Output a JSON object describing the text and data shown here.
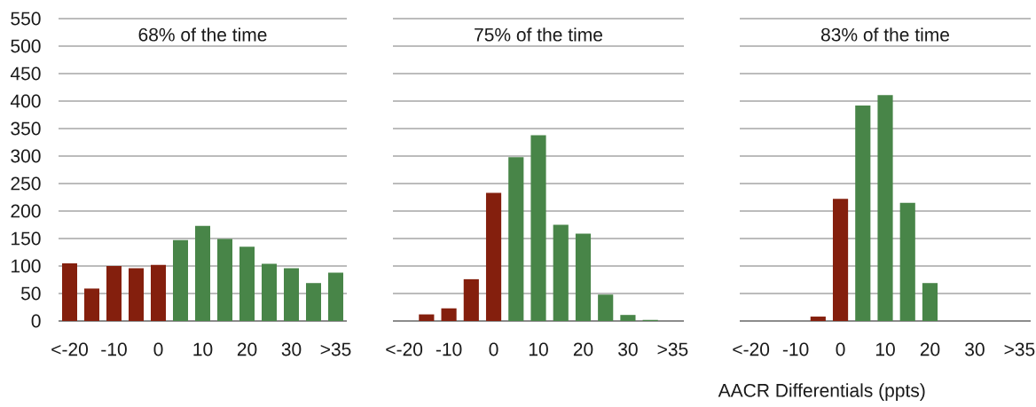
{
  "chart_data": [
    {
      "type": "bar",
      "title": "68% of the time",
      "categories": [
        "<-20",
        null,
        "-10",
        null,
        "0",
        null,
        "10",
        null,
        "20",
        null,
        "30",
        null,
        ">35"
      ],
      "values": [
        105,
        59,
        100,
        96,
        102,
        147,
        173,
        149,
        135,
        104,
        96,
        69,
        88
      ],
      "colors": [
        "#841f0d",
        "#841f0d",
        "#841f0d",
        "#841f0d",
        "#841f0d",
        "#488548",
        "#488548",
        "#488548",
        "#488548",
        "#488548",
        "#488548",
        "#488548",
        "#488548"
      ],
      "ylim": [
        0,
        550
      ],
      "yticks": [
        0,
        50,
        100,
        150,
        200,
        250,
        300,
        350,
        400,
        450,
        500,
        550
      ],
      "grid": "y"
    },
    {
      "type": "bar",
      "title": "75% of the time",
      "categories": [
        "<-20",
        null,
        "-10",
        null,
        "0",
        null,
        "10",
        null,
        "20",
        null,
        "30",
        null,
        ">35"
      ],
      "values": [
        0,
        12,
        23,
        76,
        233,
        298,
        338,
        175,
        159,
        48,
        11,
        2,
        0
      ],
      "colors": [
        "#841f0d",
        "#841f0d",
        "#841f0d",
        "#841f0d",
        "#841f0d",
        "#488548",
        "#488548",
        "#488548",
        "#488548",
        "#488548",
        "#488548",
        "#488548",
        "#488548"
      ],
      "ylim": [
        0,
        550
      ],
      "yticks": [
        0,
        50,
        100,
        150,
        200,
        250,
        300,
        350,
        400,
        450,
        500,
        550
      ],
      "grid": "y",
      "tick_labels": "x"
    },
    {
      "type": "bar",
      "title": "83% of the time",
      "xlabel": "AACR Differentials (ppts)",
      "categories": [
        "<-20",
        null,
        "-10",
        null,
        "0",
        null,
        "10",
        null,
        "20",
        null,
        "30",
        null,
        ">35"
      ],
      "values": [
        0,
        0,
        0,
        8,
        222,
        392,
        411,
        215,
        69,
        0,
        0,
        0,
        0
      ],
      "colors": [
        "#841f0d",
        "#841f0d",
        "#841f0d",
        "#841f0d",
        "#841f0d",
        "#488548",
        "#488548",
        "#488548",
        "#488548",
        "#488548",
        "#488548",
        "#488548",
        "#488548"
      ],
      "ylim": [
        0,
        550
      ],
      "yticks": [
        0,
        50,
        100,
        150,
        200,
        250,
        300,
        350,
        400,
        450,
        500,
        550
      ],
      "grid": "y",
      "tick_labels": "x"
    }
  ]
}
